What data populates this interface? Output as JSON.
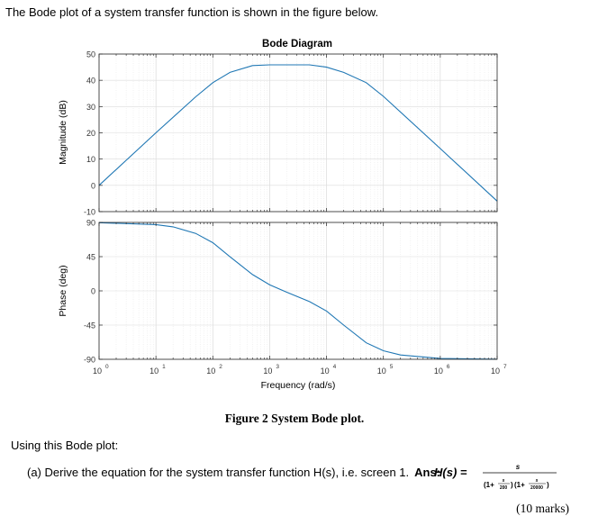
{
  "intro_text": "The Bode plot of a system transfer function is shown in the figure below.",
  "chart_data": [
    {
      "type": "line",
      "title": "Bode Diagram",
      "xlabel": "Frequency (rad/s)",
      "ylabel": "Magnitude (dB)",
      "xscale": "log",
      "xlim": [
        1,
        10000000
      ],
      "ylim": [
        -10,
        50
      ],
      "x_tick_labels": [
        "10",
        "10",
        "10",
        "10",
        "10",
        "10",
        "10",
        "10"
      ],
      "x_tick_exponents": [
        "0",
        "1",
        "2",
        "3",
        "4",
        "5",
        "6",
        "7"
      ],
      "y_ticks": [
        "50",
        "40",
        "30",
        "20",
        "10",
        "0",
        "-10"
      ],
      "grid": true,
      "series": [
        {
          "color": "#1f77b4",
          "x": [
            1,
            10,
            50,
            100,
            200,
            500,
            1000,
            5000,
            10000,
            20000,
            50000,
            100000,
            1000000,
            10000000
          ],
          "y": [
            0,
            20,
            33.7,
            39.1,
            43.0,
            45.6,
            45.9,
            45.9,
            45.0,
            43.0,
            39.1,
            33.9,
            14.0,
            -6.0
          ]
        }
      ]
    },
    {
      "type": "line",
      "xlabel": "Frequency (rad/s)",
      "ylabel": "Phase (deg)",
      "xscale": "log",
      "xlim": [
        1,
        10000000
      ],
      "ylim": [
        -90,
        90
      ],
      "y_ticks": [
        "90",
        "45",
        "0",
        "-45",
        "-90"
      ],
      "grid": true,
      "series": [
        {
          "color": "#1f77b4",
          "x": [
            1,
            10,
            20,
            50,
            100,
            200,
            500,
            1000,
            2000,
            5000,
            10000,
            20000,
            50000,
            100000,
            200000,
            1000000,
            10000000
          ],
          "y": [
            89.7,
            87.1,
            84.2,
            75.5,
            63.4,
            44.9,
            21.4,
            8.1,
            -1.8,
            -14.1,
            -26.5,
            -45.0,
            -68.3,
            -78.7,
            -84.3,
            -88.9,
            -89.9
          ]
        }
      ]
    }
  ],
  "figure_caption": "Figure 2  System Bode plot.",
  "using_text": "Using this Bode plot:",
  "question_text": "(a) Derive the equation for the system transfer function H(s), i.e. screen 1.",
  "answer_label": "Ans:",
  "answer_lhs": "H(s) =",
  "answer_numerator": "s",
  "answer_den_1_prefix": "(1+",
  "answer_den_1_num": "s",
  "answer_den_1_den": "200",
  "answer_den_1_suffix": ")",
  "answer_den_2_prefix": "(1+",
  "answer_den_2_num": "s",
  "answer_den_2_den": "20000",
  "answer_den_2_suffix": ")",
  "marks_text": "(10 marks)"
}
